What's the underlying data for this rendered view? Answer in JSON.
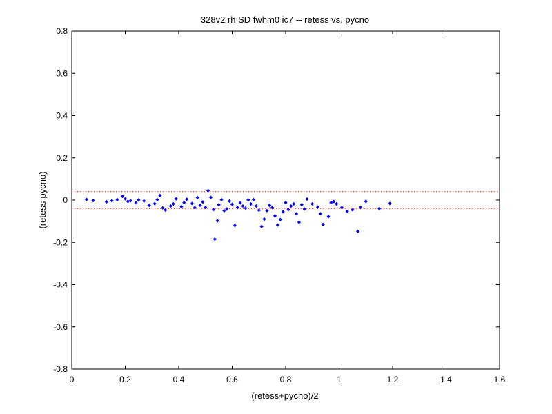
{
  "chart_data": {
    "type": "scatter",
    "title": "328v2 rh SD fwhm0 ic7 -- retess vs. pycno",
    "xlabel": "(retess+pycno)/2",
    "ylabel": "(retess-pycno)",
    "xlim": [
      0,
      1.6
    ],
    "ylim": [
      -0.8,
      0.8
    ],
    "xticks": [
      0,
      0.2,
      0.4,
      0.6,
      0.8,
      1,
      1.2,
      1.4,
      1.6
    ],
    "xtick_labels": [
      "0",
      "0.2",
      "0.4",
      "0.6",
      "0.8",
      "1",
      "1.2",
      "1.4",
      "1.6"
    ],
    "yticks": [
      -0.8,
      -0.6,
      -0.4,
      -0.2,
      0,
      0.2,
      0.4,
      0.6,
      0.8
    ],
    "ytick_labels": [
      "-0.8",
      "-0.6",
      "-0.4",
      "-0.2",
      "0",
      "0.2",
      "0.4",
      "0.6",
      "0.8"
    ],
    "grid": false,
    "reference_lines": [
      0.04,
      -0.04
    ],
    "reference_line_color": "#ff0000",
    "marker_color": "#0000ff",
    "points": [
      [
        0.055,
        0.003
      ],
      [
        0.08,
        -0.002
      ],
      [
        0.13,
        -0.008
      ],
      [
        0.15,
        -0.003
      ],
      [
        0.17,
        0.002
      ],
      [
        0.19,
        0.018
      ],
      [
        0.2,
        0.006
      ],
      [
        0.21,
        -0.006
      ],
      [
        0.22,
        -0.003
      ],
      [
        0.24,
        -0.013
      ],
      [
        0.25,
        0.001
      ],
      [
        0.27,
        -0.004
      ],
      [
        0.29,
        -0.025
      ],
      [
        0.31,
        -0.017
      ],
      [
        0.32,
        0.002
      ],
      [
        0.33,
        0.022
      ],
      [
        0.34,
        -0.037
      ],
      [
        0.35,
        -0.047
      ],
      [
        0.37,
        -0.028
      ],
      [
        0.38,
        -0.018
      ],
      [
        0.39,
        0.006
      ],
      [
        0.41,
        -0.031
      ],
      [
        0.42,
        -0.012
      ],
      [
        0.43,
        0.004
      ],
      [
        0.45,
        -0.016
      ],
      [
        0.46,
        -0.036
      ],
      [
        0.47,
        0.012
      ],
      [
        0.48,
        -0.025
      ],
      [
        0.49,
        -0.009
      ],
      [
        0.5,
        -0.035
      ],
      [
        0.51,
        0.045
      ],
      [
        0.52,
        0.013
      ],
      [
        0.53,
        -0.045
      ],
      [
        0.535,
        -0.185
      ],
      [
        0.545,
        -0.098
      ],
      [
        0.55,
        -0.022
      ],
      [
        0.56,
        0.002
      ],
      [
        0.57,
        -0.05
      ],
      [
        0.58,
        -0.042
      ],
      [
        0.59,
        -0.005
      ],
      [
        0.6,
        -0.02
      ],
      [
        0.61,
        -0.12
      ],
      [
        0.62,
        -0.035
      ],
      [
        0.63,
        -0.013
      ],
      [
        0.64,
        -0.028
      ],
      [
        0.65,
        -0.038
      ],
      [
        0.66,
        0.001
      ],
      [
        0.67,
        -0.018
      ],
      [
        0.68,
        0.002
      ],
      [
        0.69,
        -0.028
      ],
      [
        0.7,
        -0.048
      ],
      [
        0.71,
        -0.125
      ],
      [
        0.72,
        -0.09
      ],
      [
        0.73,
        -0.05
      ],
      [
        0.74,
        -0.025
      ],
      [
        0.75,
        -0.035
      ],
      [
        0.76,
        -0.075
      ],
      [
        0.77,
        -0.118
      ],
      [
        0.78,
        -0.092
      ],
      [
        0.79,
        -0.055
      ],
      [
        0.8,
        -0.012
      ],
      [
        0.81,
        -0.045
      ],
      [
        0.82,
        -0.028
      ],
      [
        0.83,
        -0.018
      ],
      [
        0.84,
        -0.065
      ],
      [
        0.85,
        -0.105
      ],
      [
        0.86,
        -0.022
      ],
      [
        0.87,
        -0.042
      ],
      [
        0.88,
        0.005
      ],
      [
        0.9,
        -0.018
      ],
      [
        0.92,
        -0.033
      ],
      [
        0.93,
        -0.065
      ],
      [
        0.94,
        -0.115
      ],
      [
        0.96,
        -0.078
      ],
      [
        0.97,
        -0.012
      ],
      [
        0.98,
        -0.007
      ],
      [
        0.99,
        -0.018
      ],
      [
        1.01,
        -0.035
      ],
      [
        1.03,
        -0.053
      ],
      [
        1.05,
        -0.046
      ],
      [
        1.07,
        -0.148
      ],
      [
        1.08,
        -0.035
      ],
      [
        1.1,
        -0.006
      ],
      [
        1.15,
        -0.04
      ],
      [
        1.19,
        -0.016
      ]
    ]
  }
}
